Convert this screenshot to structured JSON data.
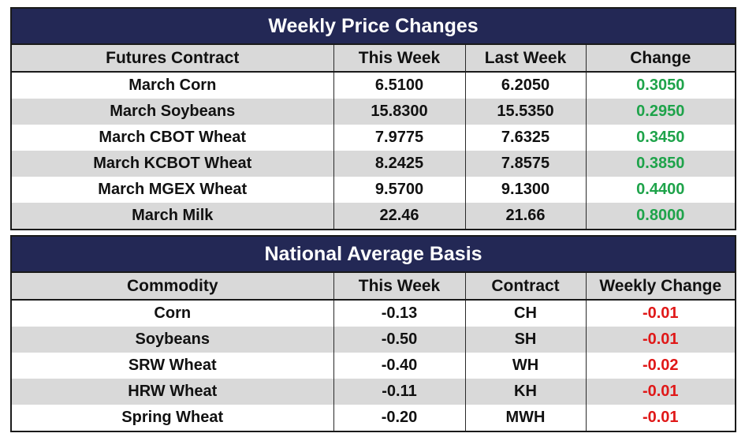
{
  "price_changes": {
    "title": "Weekly Price Changes",
    "headers": [
      "Futures Contract",
      "This Week",
      "Last Week",
      "Change"
    ],
    "rows": [
      {
        "contract": "March Corn",
        "this_week": "6.5100",
        "last_week": "6.2050",
        "change": "0.3050"
      },
      {
        "contract": "March Soybeans",
        "this_week": "15.8300",
        "last_week": "15.5350",
        "change": "0.2950"
      },
      {
        "contract": "March CBOT Wheat",
        "this_week": "7.9775",
        "last_week": "7.6325",
        "change": "0.3450"
      },
      {
        "contract": "March KCBOT Wheat",
        "this_week": "8.2425",
        "last_week": "7.8575",
        "change": "0.3850"
      },
      {
        "contract": "March MGEX Wheat",
        "this_week": "9.5700",
        "last_week": "9.1300",
        "change": "0.4400"
      },
      {
        "contract": "March Milk",
        "this_week": "22.46",
        "last_week": "21.66",
        "change": "0.8000"
      }
    ]
  },
  "basis": {
    "title": "National Average Basis",
    "headers": [
      "Commodity",
      "This Week",
      "Contract",
      "Weekly Change"
    ],
    "rows": [
      {
        "commodity": "Corn",
        "this_week": "-0.13",
        "contract": "CH",
        "weekly_change": "-0.01"
      },
      {
        "commodity": "Soybeans",
        "this_week": "-0.50",
        "contract": "SH",
        "weekly_change": "-0.01"
      },
      {
        "commodity": "SRW Wheat",
        "this_week": "-0.40",
        "contract": "WH",
        "weekly_change": "-0.02"
      },
      {
        "commodity": "HRW Wheat",
        "this_week": "-0.11",
        "contract": "KH",
        "weekly_change": "-0.01"
      },
      {
        "commodity": "Spring Wheat",
        "this_week": "-0.20",
        "contract": "MWH",
        "weekly_change": "-0.01"
      }
    ]
  },
  "colors": {
    "title_bar": "#232855",
    "header_bg": "#d9d9d9",
    "positive": "#1ea34a",
    "negative": "#e01818"
  }
}
